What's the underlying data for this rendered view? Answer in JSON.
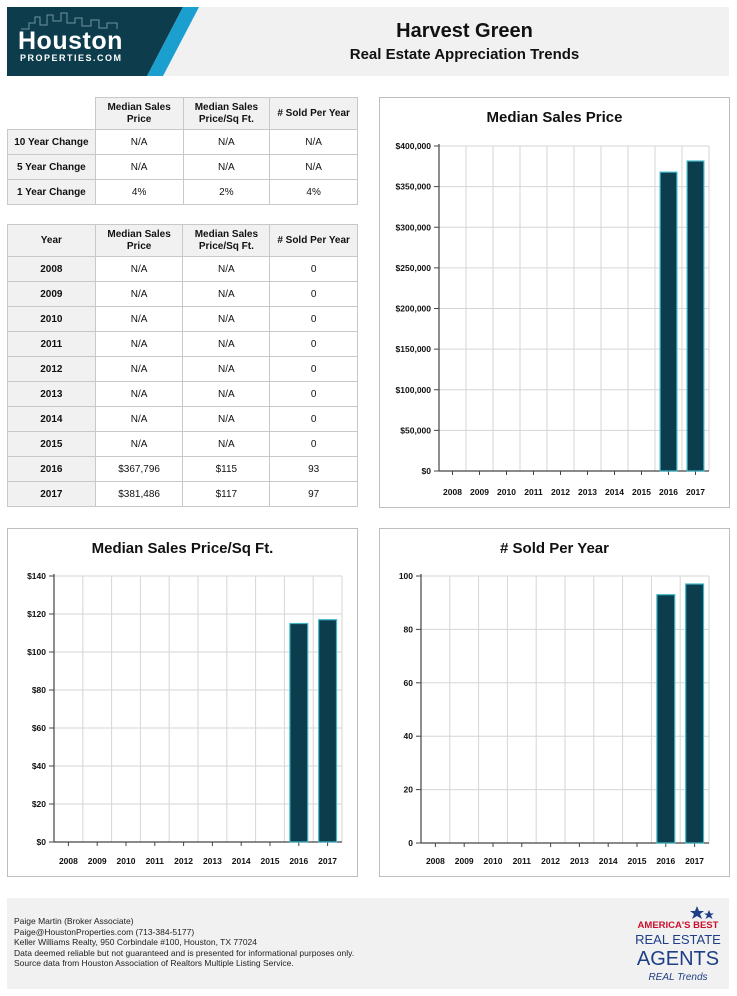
{
  "header": {
    "logo_line1": "Houston",
    "logo_line2": "PROPERTIES.COM",
    "title": "Harvest Green",
    "subtitle": "Real Estate Appreciation Trends"
  },
  "change_table": {
    "headers": [
      "",
      "Median Sales Price",
      "Median Sales Price/Sq Ft.",
      "# Sold Per Year"
    ],
    "rows": [
      {
        "label": "10 Year Change",
        "price": "N/A",
        "sqft": "N/A",
        "sold": "N/A"
      },
      {
        "label": "5 Year Change",
        "price": "N/A",
        "sqft": "N/A",
        "sold": "N/A"
      },
      {
        "label": "1 Year Change",
        "price": "4%",
        "sqft": "2%",
        "sold": "4%"
      }
    ]
  },
  "year_table": {
    "headers": [
      "Year",
      "Median Sales Price",
      "Median Sales Price/Sq Ft.",
      "# Sold Per Year"
    ],
    "rows": [
      {
        "year": "2008",
        "price": "N/A",
        "sqft": "N/A",
        "sold": "0"
      },
      {
        "year": "2009",
        "price": "N/A",
        "sqft": "N/A",
        "sold": "0"
      },
      {
        "year": "2010",
        "price": "N/A",
        "sqft": "N/A",
        "sold": "0"
      },
      {
        "year": "2011",
        "price": "N/A",
        "sqft": "N/A",
        "sold": "0"
      },
      {
        "year": "2012",
        "price": "N/A",
        "sqft": "N/A",
        "sold": "0"
      },
      {
        "year": "2013",
        "price": "N/A",
        "sqft": "N/A",
        "sold": "0"
      },
      {
        "year": "2014",
        "price": "N/A",
        "sqft": "N/A",
        "sold": "0"
      },
      {
        "year": "2015",
        "price": "N/A",
        "sqft": "N/A",
        "sold": "0"
      },
      {
        "year": "2016",
        "price": "$367,796",
        "sqft": "$115",
        "sold": "93"
      },
      {
        "year": "2017",
        "price": "$381,486",
        "sqft": "$117",
        "sold": "97"
      }
    ]
  },
  "chart_data": [
    {
      "id": "price",
      "type": "bar",
      "title": "Median Sales Price",
      "categories": [
        "2008",
        "2009",
        "2010",
        "2011",
        "2012",
        "2013",
        "2014",
        "2015",
        "2016",
        "2017"
      ],
      "values": [
        0,
        0,
        0,
        0,
        0,
        0,
        0,
        0,
        367796,
        381486
      ],
      "ylim": [
        0,
        400000
      ],
      "yticks": [
        0,
        50000,
        100000,
        150000,
        200000,
        250000,
        300000,
        350000,
        400000
      ],
      "ytick_labels": [
        "$0",
        "$50,000",
        "$100,000",
        "$150,000",
        "$200,000",
        "$250,000",
        "$300,000",
        "$350,000",
        "$400,000"
      ],
      "grid": true
    },
    {
      "id": "sqft",
      "type": "bar",
      "title": "Median Sales Price/Sq Ft.",
      "categories": [
        "2008",
        "2009",
        "2010",
        "2011",
        "2012",
        "2013",
        "2014",
        "2015",
        "2016",
        "2017"
      ],
      "values": [
        0,
        0,
        0,
        0,
        0,
        0,
        0,
        0,
        115,
        117
      ],
      "ylim": [
        0,
        140
      ],
      "yticks": [
        0,
        20,
        40,
        60,
        80,
        100,
        120,
        140
      ],
      "ytick_labels": [
        "$0",
        "$20",
        "$40",
        "$60",
        "$80",
        "$100",
        "$120",
        "$140"
      ],
      "grid": true
    },
    {
      "id": "sold",
      "type": "bar",
      "title": "# Sold Per Year",
      "categories": [
        "2008",
        "2009",
        "2010",
        "2011",
        "2012",
        "2013",
        "2014",
        "2015",
        "2016",
        "2017"
      ],
      "values": [
        0,
        0,
        0,
        0,
        0,
        0,
        0,
        0,
        93,
        97
      ],
      "ylim": [
        0,
        100
      ],
      "yticks": [
        0,
        20,
        40,
        60,
        80,
        100
      ],
      "ytick_labels": [
        "0",
        "20",
        "40",
        "60",
        "80",
        "100"
      ],
      "grid": true
    }
  ],
  "colors": {
    "bar_fill": "#0b3d4c",
    "bar_edge": "#3fb6c8",
    "logo_dark": "#0d3d4d",
    "logo_accent": "#1a9fcf"
  },
  "footer": {
    "lines": [
      "Paige Martin (Broker Associate)",
      "Paige@HoustonProperties.com (713-384-5177)",
      "Keller Williams Realty, 950 Corbindale #100, Houston, TX 77024",
      "Data deemed reliable but not guaranteed and is presented for informational purposes only.",
      "Source data from Houston Association of Realtors Multiple Listing Service."
    ],
    "badge_line1": "AMERICA'S BEST",
    "badge_line2": "REAL ESTATE",
    "badge_line3": "AGENTS",
    "badge_line4": "REAL Trends"
  }
}
